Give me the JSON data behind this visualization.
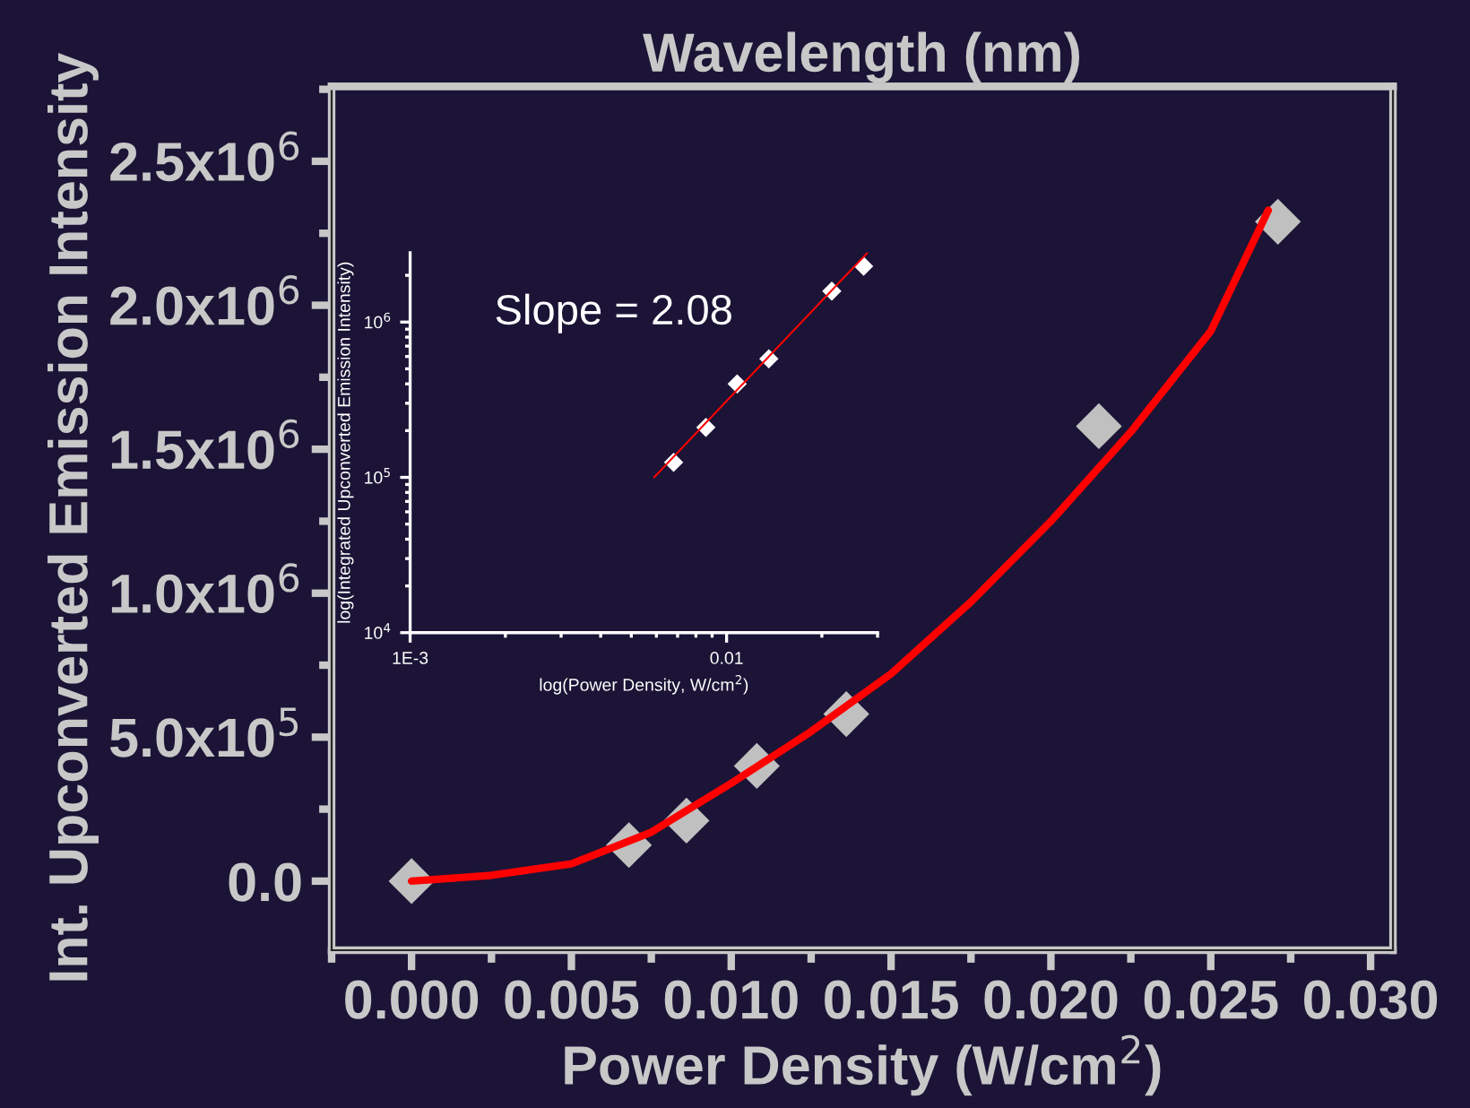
{
  "chart_data": [
    {
      "type": "scatter",
      "x2label": "Wavelength (nm)",
      "xlabel": "Power Density (W/cm$^{2}$)",
      "ylabel": "Int. Upconverted Emission Intensity",
      "xlim": [
        -0.0025,
        0.0307
      ],
      "xticks": [
        {
          "value": 0,
          "label": "0.000"
        },
        0.005,
        {
          "value": 0.01,
          "label": "0.010"
        },
        0.015,
        {
          "value": 0.02,
          "label": "0.020"
        },
        0.025,
        {
          "value": 0.03,
          "label": "0.030"
        }
      ],
      "ylim": [
        -240000,
        2760000
      ],
      "yticks": [
        {
          "value": 0,
          "label": "0.0"
        },
        {
          "value": 500000,
          "label": "5.0x10$^{5}$"
        },
        {
          "value": 1000000,
          "label": "1.0x10$^{6}$"
        },
        {
          "value": 1500000,
          "label": "1.5x10$^{6}$"
        },
        {
          "value": 2000000,
          "label": "2.0x10$^{6}$"
        },
        {
          "value": 2500000,
          "label": "2.5x10$^{6}$"
        }
      ],
      "grid": false,
      "legend": false,
      "series": [
        {
          "type": "line",
          "color": "#ff0000",
          "marker": "none",
          "line_style": "solid",
          "x": [
            0,
            0.0025,
            0.005,
            0.0075,
            0.01,
            0.0125,
            0.015,
            0.0175,
            0.02,
            0.0225,
            0.025,
            0.0268
          ],
          "values": [
            0,
            20000,
            60000,
            170000,
            340000,
            520000,
            720000,
            970000,
            1250000,
            1560000,
            1910000,
            2330000
          ]
        },
        {
          "color": "#c0c0c0",
          "marker": "diamond",
          "x": [
            0,
            0.0068,
            0.0086,
            0.0108,
            0.0136,
            0.0215,
            0.0271
          ],
          "values": [
            0,
            125000,
            210000,
            400000,
            580000,
            1580000,
            2290000
          ]
        }
      ]
    },
    {
      "type": "scatter",
      "log": "xy",
      "xlabel": "log(Power Density, W/cm$^{2}$)",
      "ylabel": "log(Integrated Upconverted Emission Intensity)",
      "xlim": [
        0.001,
        0.03
      ],
      "xticks": [
        {
          "value": 0.001,
          "label": "1E-3"
        },
        0.01
      ],
      "ylim": [
        10000,
        2800000
      ],
      "yticks": [
        {
          "value": 10000,
          "label": "10$^{4}$"
        },
        {
          "value": 100000,
          "label": "10$^{5}$"
        },
        {
          "value": 1000000,
          "label": "10$^{6}$"
        }
      ],
      "grid": false,
      "legend": false,
      "annotations": [
        {
          "text": "Slope = 2.08"
        }
      ],
      "series": [
        {
          "color": "#ffffff",
          "marker": "diamond",
          "x": [
            0.0068,
            0.0086,
            0.0108,
            0.0136,
            0.0215,
            0.0271
          ],
          "values": [
            125000,
            210000,
            400000,
            580000,
            1580000,
            2290000
          ]
        },
        {
          "type": "line",
          "color": "#ff0000",
          "marker": "none",
          "line_style": "solid",
          "x": [
            0.0059,
            0.0279
          ],
          "values": [
            100000,
            2800000
          ]
        }
      ]
    }
  ]
}
